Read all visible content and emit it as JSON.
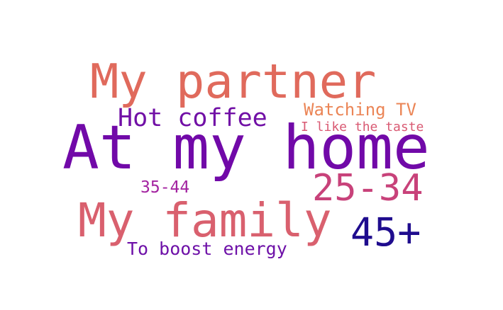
{
  "words": [
    {
      "text": "At my home",
      "color": "#7109a8"
    },
    {
      "text": "My partner",
      "color": "#e06a5c"
    },
    {
      "text": "My family",
      "color": "#d9606e"
    },
    {
      "text": "25-34",
      "color": "#c8427a"
    },
    {
      "text": "45+",
      "color": "#1f0c8e"
    },
    {
      "text": "Hot coffee",
      "color": "#7110a6"
    },
    {
      "text": "Watching TV",
      "color": "#eb8556"
    },
    {
      "text": "I like the taste",
      "color": "#d95a73"
    },
    {
      "text": "35-44",
      "color": "#a323a0"
    },
    {
      "text": "To boost energy",
      "color": "#6e11a8"
    }
  ]
}
